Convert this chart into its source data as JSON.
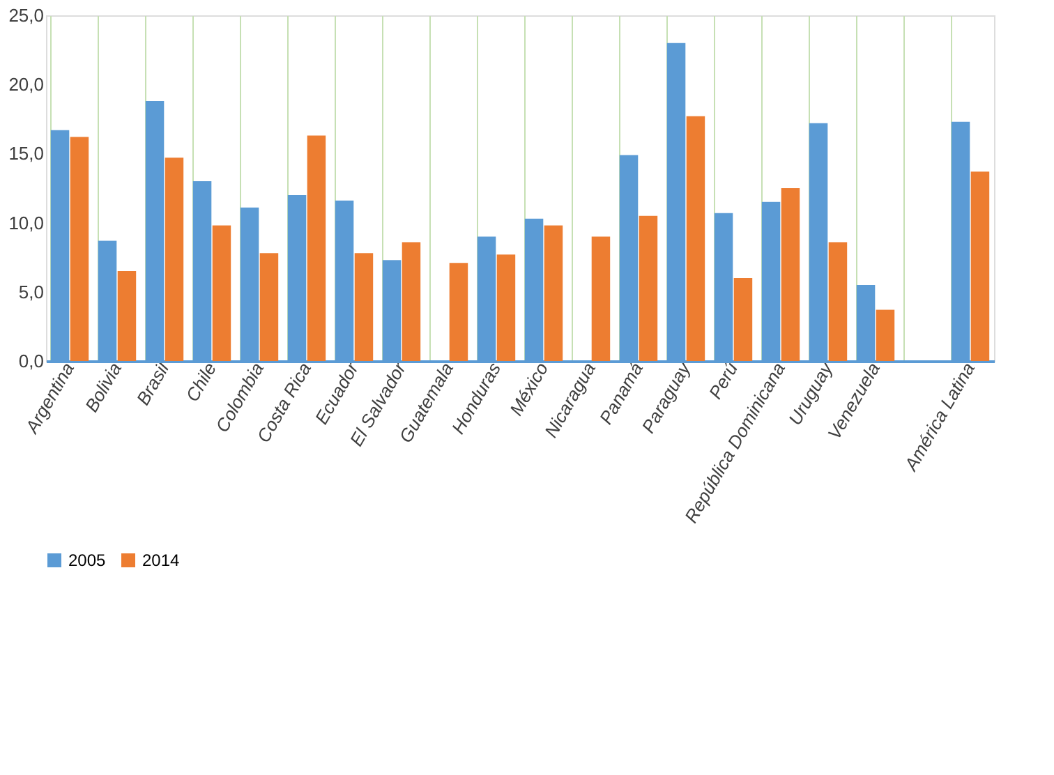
{
  "chart_data": {
    "type": "bar",
    "categories": [
      "Argentina",
      "Bolivia",
      "Brasil",
      "Chile",
      "Colombia",
      "Costa Rica",
      "Ecuador",
      "El Salvador",
      "Guatemala",
      "Honduras",
      "México",
      "Nicaragua",
      "Panamá",
      "Paraguay",
      "Perú",
      "República Dominicana",
      "Uruguay",
      "Venezuela",
      null,
      "América Latina"
    ],
    "series": [
      {
        "name": "2005",
        "color": "#5b9bd5",
        "values": [
          16.7,
          8.7,
          18.8,
          13.0,
          11.1,
          12.0,
          11.6,
          7.3,
          null,
          9.0,
          10.3,
          null,
          14.9,
          23.0,
          10.7,
          11.5,
          17.2,
          5.5,
          null,
          17.3
        ]
      },
      {
        "name": "2014",
        "color": "#ed7d31",
        "values": [
          16.2,
          6.5,
          14.7,
          9.8,
          7.8,
          16.3,
          7.8,
          8.6,
          7.1,
          7.7,
          9.8,
          9.0,
          10.5,
          17.7,
          6.0,
          12.5,
          8.6,
          3.7,
          null,
          13.7
        ]
      }
    ],
    "ylim": [
      0,
      25
    ],
    "yticks": [
      {
        "value": 0,
        "label": "0,0"
      },
      {
        "value": 5,
        "label": "5,0"
      },
      {
        "value": 10,
        "label": "10,0"
      },
      {
        "value": 15,
        "label": "15,0"
      },
      {
        "value": 20,
        "label": "20,0"
      },
      {
        "value": 25,
        "label": "25,0"
      }
    ],
    "grid": "x",
    "legend": "bottom"
  }
}
